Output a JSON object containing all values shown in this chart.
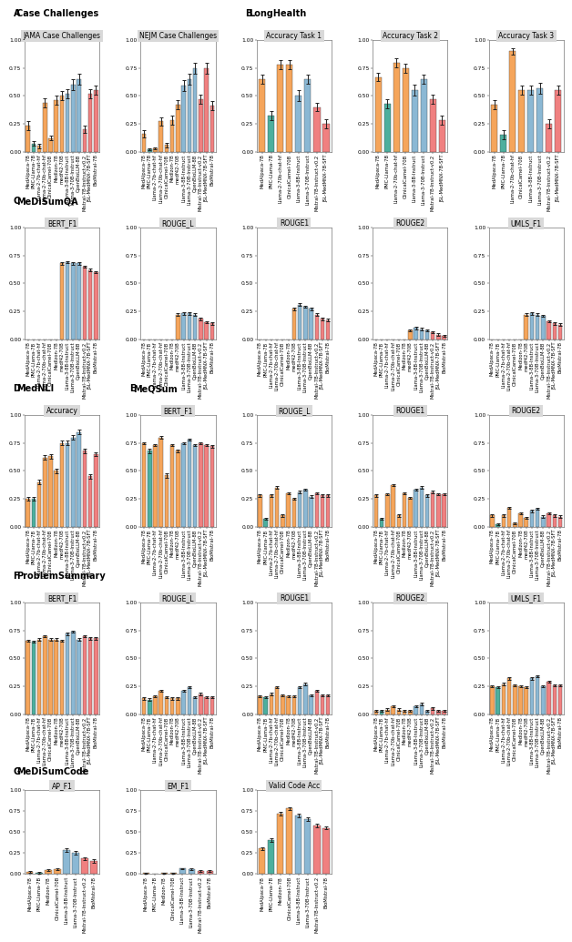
{
  "colors": {
    "orange": "#F5A55B",
    "teal": "#4DAF9E",
    "blue": "#8BB8D4",
    "pink": "#F08080",
    "light_pink": "#F4A0A0",
    "gray_title_bg": "#D9D9D9"
  },
  "models_13": [
    "MedAlpaca-7B",
    "PMC-Llama-7B",
    "Llama-2-7b-chat-hf",
    "Llama-2-70b-chat-hf",
    "ClinicalCamel-70B",
    "MedIzon-7B",
    "medf42-70B",
    "Llama-3-8B-Instruct",
    "Llama-3-70B-Instruct",
    "OpenBioLLM-8B",
    "Mistral-7B-Instruct-v0.2",
    "JSL-MedMNX-7B-SFT",
    "BioMistral-7B"
  ],
  "colors_13": [
    "#F5A55B",
    "#4DAF9E",
    "#F5A55B",
    "#F5A55B",
    "#F5A55B",
    "#F5A55B",
    "#F5A55B",
    "#8BB8D4",
    "#8BB8D4",
    "#8BB8D4",
    "#F08080",
    "#F08080",
    "#F08080"
  ],
  "models_B": [
    "MedAlpaca-7B",
    "PMC-Llama-7B",
    "Llama-2-70b-chat-hf",
    "ClinicalCamel-70B",
    "Llama-3-8B-Instruct",
    "Llama-3-70B-Instruct",
    "Mistral-7B-Instruct-v0.2",
    "JSL-MedMNX-7B-SFT"
  ],
  "colors_B": [
    "#F5A55B",
    "#4DAF9E",
    "#F5A55B",
    "#F5A55B",
    "#8BB8D4",
    "#8BB8D4",
    "#F08080",
    "#F08080"
  ],
  "models_C": [
    "MedAlpaca-7B",
    "PMC-Llama-7B",
    "Llama-2-7b-chat-hf",
    "Llama-2-70b-chat-hf",
    "ClinicalCamel-70B",
    "MedIzon-7B",
    "medf42-70B",
    "Llama-3-8B-Instruct",
    "Llama-3-70B-Instruct",
    "OpenBioLLM-8B",
    "Mistral-7B-Instruct-v0.2",
    "JSL-MedMNX-7B-SFT",
    "BioMistral-7B"
  ],
  "colors_C": [
    "#F5A55B",
    "#4DAF9E",
    "#F5A55B",
    "#F5A55B",
    "#F5A55B",
    "#F5A55B",
    "#F5A55B",
    "#8BB8D4",
    "#8BB8D4",
    "#8BB8D4",
    "#F08080",
    "#F08080",
    "#F08080"
  ],
  "models_G": [
    "MedAlpaca-7B",
    "PMC-Llama-7B",
    "MedIzon-7B",
    "ClinicalCamel-70B",
    "Llama-3-8B-Instruct",
    "Llama-3-70B-Instruct",
    "Mistral-7B-Instruct-v0.2",
    "BioMistral-7B"
  ],
  "colors_G": [
    "#F5A55B",
    "#4DAF9E",
    "#F5A55B",
    "#F5A55B",
    "#8BB8D4",
    "#8BB8D4",
    "#F08080",
    "#F08080"
  ],
  "A_JAMA_vals": [
    0.23,
    0.07,
    0.05,
    0.44,
    0.12,
    0.46,
    0.5,
    0.52,
    0.6,
    0.65,
    0.2,
    0.52,
    0.55
  ],
  "A_JAMA_errs": [
    0.04,
    0.02,
    0.02,
    0.04,
    0.02,
    0.04,
    0.04,
    0.04,
    0.05,
    0.05,
    0.03,
    0.04,
    0.04
  ],
  "A_NEJM_vals": [
    0.16,
    0.02,
    0.03,
    0.27,
    0.06,
    0.28,
    0.42,
    0.59,
    0.65,
    0.75,
    0.47,
    0.75,
    0.41
  ],
  "A_NEJM_errs": [
    0.03,
    0.01,
    0.01,
    0.04,
    0.02,
    0.04,
    0.04,
    0.05,
    0.05,
    0.05,
    0.04,
    0.05,
    0.04
  ],
  "B_T1_vals": [
    0.65,
    0.32,
    0.78,
    0.78,
    0.5,
    0.65,
    0.4,
    0.25
  ],
  "B_T1_errs": [
    0.04,
    0.04,
    0.04,
    0.04,
    0.05,
    0.04,
    0.04,
    0.04
  ],
  "B_T2_vals": [
    0.67,
    0.43,
    0.8,
    0.75,
    0.55,
    0.65,
    0.47,
    0.28
  ],
  "B_T2_errs": [
    0.04,
    0.04,
    0.04,
    0.04,
    0.05,
    0.04,
    0.04,
    0.04
  ],
  "B_T3_vals": [
    0.42,
    0.15,
    0.9,
    0.55,
    0.55,
    0.57,
    0.25,
    0.55
  ],
  "B_T3_errs": [
    0.04,
    0.04,
    0.03,
    0.04,
    0.04,
    0.05,
    0.04,
    0.04
  ],
  "C_BERT_vals": [
    0.0,
    0.0,
    0.0,
    0.0,
    0.0,
    0.0,
    0.68,
    0.69,
    0.68,
    0.68,
    0.65,
    0.62,
    0.6
  ],
  "C_BERT_errs": [
    0.0,
    0.0,
    0.0,
    0.0,
    0.0,
    0.0,
    0.01,
    0.01,
    0.01,
    0.01,
    0.01,
    0.01,
    0.01
  ],
  "C_ROUGEL_vals": [
    0.0,
    0.0,
    0.0,
    0.0,
    0.0,
    0.0,
    0.22,
    0.23,
    0.23,
    0.22,
    0.18,
    0.15,
    0.14
  ],
  "C_ROUGEL_errs": [
    0.0,
    0.0,
    0.0,
    0.0,
    0.0,
    0.0,
    0.01,
    0.01,
    0.01,
    0.01,
    0.01,
    0.01,
    0.01
  ],
  "C_ROUGE1_vals": [
    0.0,
    0.0,
    0.0,
    0.0,
    0.0,
    0.0,
    0.27,
    0.31,
    0.29,
    0.27,
    0.22,
    0.18,
    0.17
  ],
  "C_ROUGE1_errs": [
    0.0,
    0.0,
    0.0,
    0.0,
    0.0,
    0.0,
    0.01,
    0.01,
    0.01,
    0.01,
    0.01,
    0.01,
    0.01
  ],
  "C_ROUGE2_vals": [
    0.0,
    0.0,
    0.0,
    0.0,
    0.0,
    0.0,
    0.08,
    0.1,
    0.09,
    0.08,
    0.06,
    0.04,
    0.03
  ],
  "C_ROUGE2_errs": [
    0.0,
    0.0,
    0.0,
    0.0,
    0.0,
    0.0,
    0.01,
    0.01,
    0.01,
    0.01,
    0.01,
    0.01,
    0.01
  ],
  "C_UMLS_vals": [
    0.0,
    0.0,
    0.0,
    0.0,
    0.0,
    0.0,
    0.22,
    0.23,
    0.22,
    0.21,
    0.16,
    0.14,
    0.13
  ],
  "C_UMLS_errs": [
    0.0,
    0.0,
    0.0,
    0.0,
    0.0,
    0.0,
    0.01,
    0.01,
    0.01,
    0.01,
    0.01,
    0.01,
    0.01
  ],
  "D_ACC_vals": [
    0.25,
    0.25,
    0.4,
    0.62,
    0.63,
    0.5,
    0.75,
    0.75,
    0.8,
    0.85,
    0.68,
    0.45,
    0.65
  ],
  "D_ACC_errs": [
    0.02,
    0.02,
    0.02,
    0.02,
    0.02,
    0.02,
    0.02,
    0.02,
    0.02,
    0.02,
    0.02,
    0.02,
    0.02
  ],
  "E_BERT_vals": [
    0.75,
    0.68,
    0.73,
    0.8,
    0.46,
    0.73,
    0.68,
    0.75,
    0.78,
    0.73,
    0.75,
    0.73,
    0.72
  ],
  "E_BERT_errs": [
    0.01,
    0.02,
    0.01,
    0.01,
    0.02,
    0.01,
    0.01,
    0.01,
    0.01,
    0.01,
    0.01,
    0.01,
    0.01
  ],
  "E_ROUGEL_vals": [
    0.28,
    0.07,
    0.28,
    0.35,
    0.1,
    0.3,
    0.25,
    0.31,
    0.33,
    0.27,
    0.3,
    0.28,
    0.28
  ],
  "E_ROUGEL_errs": [
    0.01,
    0.01,
    0.01,
    0.01,
    0.01,
    0.01,
    0.01,
    0.01,
    0.01,
    0.01,
    0.01,
    0.01,
    0.01
  ],
  "E_ROUGE1_vals": [
    0.28,
    0.07,
    0.29,
    0.37,
    0.1,
    0.3,
    0.26,
    0.33,
    0.35,
    0.28,
    0.31,
    0.29,
    0.29
  ],
  "E_ROUGE1_errs": [
    0.01,
    0.01,
    0.01,
    0.01,
    0.01,
    0.01,
    0.01,
    0.01,
    0.01,
    0.01,
    0.01,
    0.01,
    0.01
  ],
  "E_ROUGE2_vals": [
    0.1,
    0.02,
    0.1,
    0.17,
    0.03,
    0.12,
    0.08,
    0.14,
    0.16,
    0.09,
    0.12,
    0.1,
    0.09
  ],
  "E_ROUGE2_errs": [
    0.01,
    0.01,
    0.01,
    0.01,
    0.01,
    0.01,
    0.01,
    0.01,
    0.01,
    0.01,
    0.01,
    0.01,
    0.01
  ],
  "F_BERT_vals": [
    0.66,
    0.65,
    0.67,
    0.7,
    0.67,
    0.67,
    0.66,
    0.72,
    0.74,
    0.67,
    0.7,
    0.68,
    0.68
  ],
  "F_BERT_errs": [
    0.01,
    0.01,
    0.01,
    0.01,
    0.01,
    0.01,
    0.01,
    0.01,
    0.01,
    0.01,
    0.01,
    0.01,
    0.01
  ],
  "F_ROUGEL_vals": [
    0.14,
    0.13,
    0.16,
    0.21,
    0.15,
    0.14,
    0.14,
    0.21,
    0.24,
    0.15,
    0.18,
    0.15,
    0.15
  ],
  "F_ROUGEL_errs": [
    0.01,
    0.01,
    0.01,
    0.01,
    0.01,
    0.01,
    0.01,
    0.01,
    0.01,
    0.01,
    0.01,
    0.01,
    0.01
  ],
  "F_ROUGE1_vals": [
    0.16,
    0.15,
    0.18,
    0.24,
    0.17,
    0.16,
    0.16,
    0.24,
    0.27,
    0.17,
    0.21,
    0.17,
    0.17
  ],
  "F_ROUGE1_errs": [
    0.01,
    0.01,
    0.01,
    0.01,
    0.01,
    0.01,
    0.01,
    0.01,
    0.01,
    0.01,
    0.01,
    0.01,
    0.01
  ],
  "F_ROUGE2_vals": [
    0.03,
    0.03,
    0.04,
    0.07,
    0.04,
    0.03,
    0.03,
    0.07,
    0.09,
    0.03,
    0.05,
    0.03,
    0.03
  ],
  "F_ROUGE2_errs": [
    0.01,
    0.01,
    0.01,
    0.01,
    0.01,
    0.01,
    0.01,
    0.01,
    0.01,
    0.01,
    0.01,
    0.01,
    0.01
  ],
  "F_UMLS_vals": [
    0.25,
    0.24,
    0.27,
    0.32,
    0.26,
    0.25,
    0.24,
    0.32,
    0.34,
    0.25,
    0.29,
    0.26,
    0.26
  ],
  "F_UMLS_errs": [
    0.01,
    0.01,
    0.01,
    0.01,
    0.01,
    0.01,
    0.01,
    0.01,
    0.01,
    0.01,
    0.01,
    0.01,
    0.01
  ],
  "G_AP_vals": [
    0.02,
    0.01,
    0.04,
    0.05,
    0.28,
    0.25,
    0.18,
    0.15
  ],
  "G_AP_errs": [
    0.01,
    0.01,
    0.01,
    0.01,
    0.02,
    0.02,
    0.02,
    0.02
  ],
  "G_EM_vals": [
    0.01,
    0.0,
    0.01,
    0.01,
    0.06,
    0.05,
    0.03,
    0.03
  ],
  "G_EM_errs": [
    0.005,
    0.0,
    0.005,
    0.005,
    0.01,
    0.01,
    0.01,
    0.01
  ],
  "G_VC_vals": [
    0.3,
    0.4,
    0.72,
    0.78,
    0.7,
    0.65,
    0.58,
    0.55
  ],
  "G_VC_errs": [
    0.02,
    0.02,
    0.02,
    0.02,
    0.02,
    0.02,
    0.02,
    0.02
  ]
}
